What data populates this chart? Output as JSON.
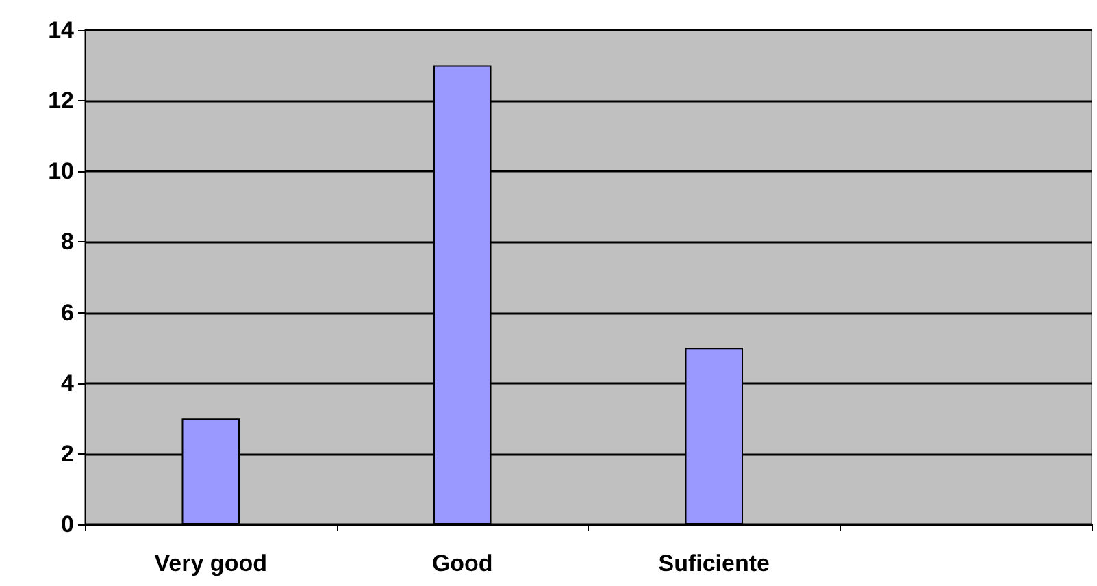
{
  "chart_data": {
    "type": "bar",
    "categories": [
      "Very good",
      "Good",
      "Suficiente",
      null
    ],
    "series": [
      {
        "color": "#9999ff",
        "values": [
          3,
          13,
          5,
          null
        ]
      }
    ],
    "ylim": [
      0,
      14
    ],
    "yticks": [
      0,
      2,
      4,
      6,
      8,
      10,
      12,
      14
    ],
    "grid": "y"
  }
}
